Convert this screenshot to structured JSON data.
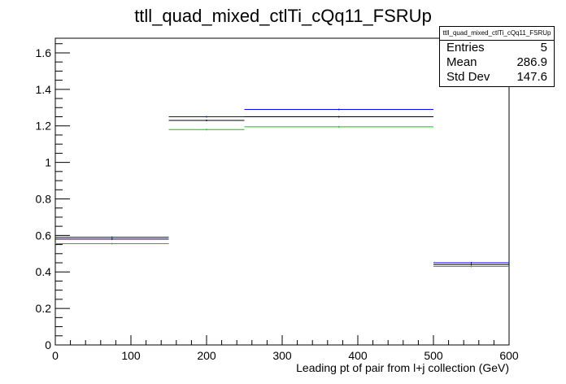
{
  "title": "ttll_quad_mixed_ctlTi_cQq11_FSRUp",
  "stats": {
    "name": "ttll_quad_mixed_ctlTi_cQq11_FSRUp",
    "rows": [
      {
        "label": "Entries",
        "value": "5"
      },
      {
        "label": "Mean",
        "value": "286.9"
      },
      {
        "label": "Std Dev",
        "value": "147.6"
      }
    ]
  },
  "chart_data": {
    "type": "histogram",
    "title": "ttll_quad_mixed_ctlTi_cQq11_FSRUp",
    "xlabel": "Leading pt of pair from l+j collection (GeV)",
    "ylabel": "",
    "xlim": [
      0,
      600
    ],
    "ylim": [
      0,
      1.68
    ],
    "bin_edges": [
      0,
      150,
      250,
      500,
      600
    ],
    "x_ticks": [
      0,
      100,
      200,
      300,
      400,
      500,
      600
    ],
    "y_ticks": [
      0,
      0.2,
      0.4,
      0.6,
      0.8,
      1,
      1.2,
      1.4,
      1.6
    ],
    "series": [
      {
        "color": "#0000ff",
        "values": [
          0.59,
          1.25,
          1.29,
          0.45
        ]
      },
      {
        "color": "#000000",
        "values": [
          0.58,
          1.23,
          1.25,
          0.44
        ]
      },
      {
        "color": "#00cc00",
        "values": [
          0.555,
          1.18,
          1.195,
          0.43
        ]
      }
    ],
    "grid": false
  }
}
